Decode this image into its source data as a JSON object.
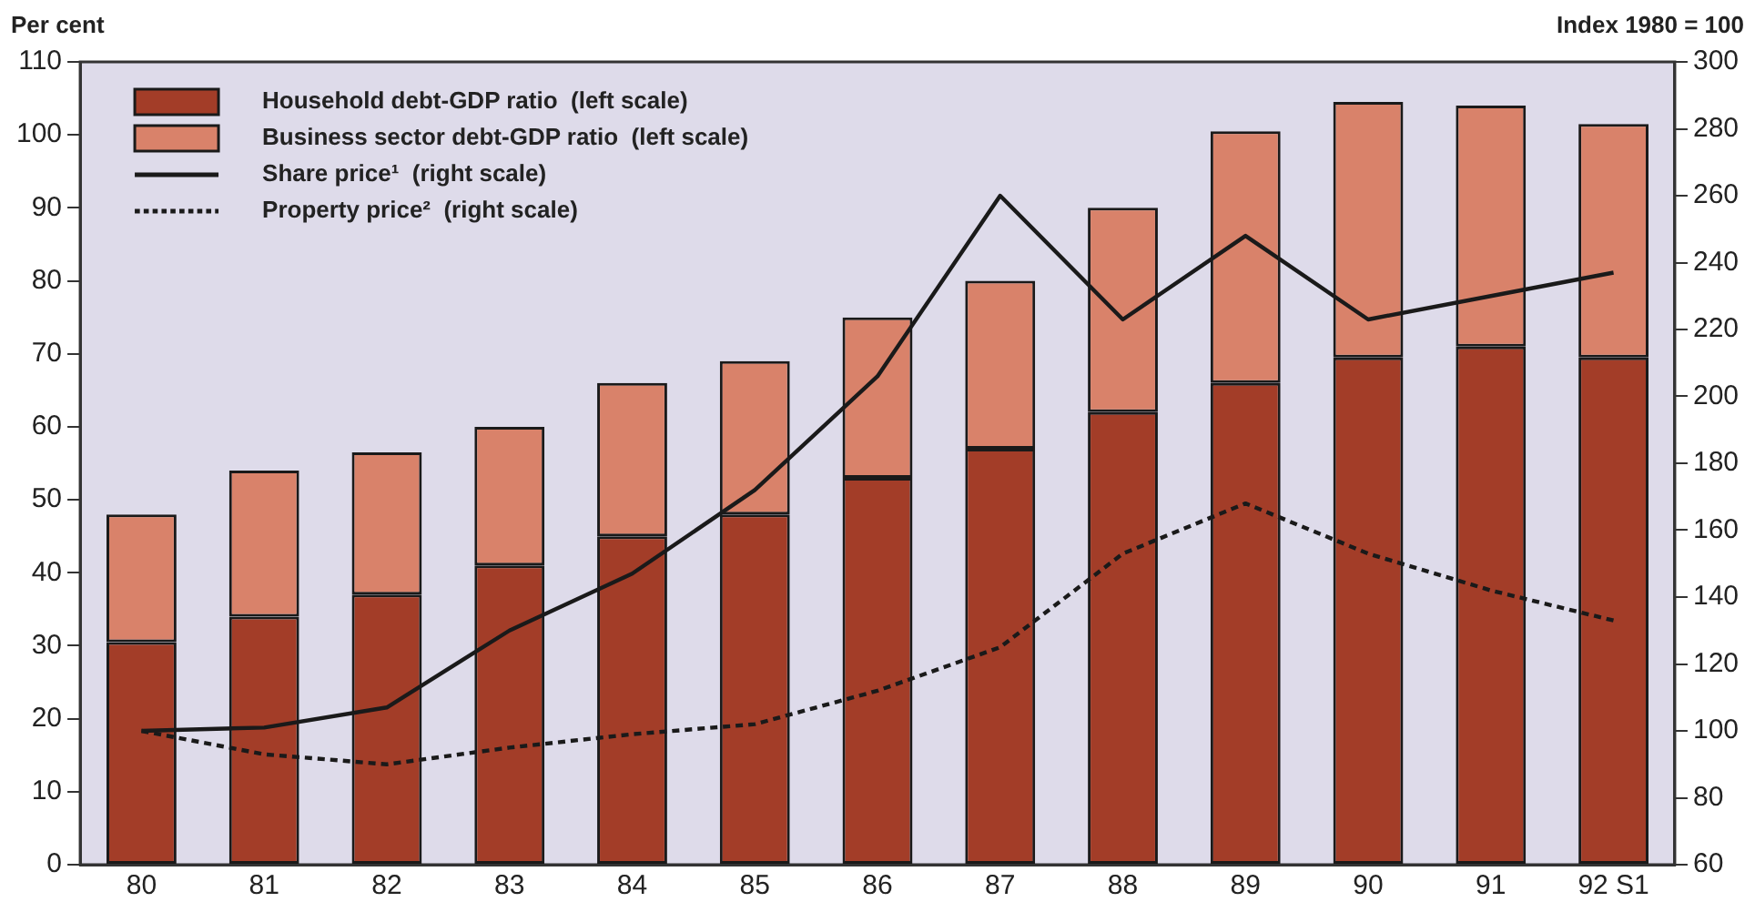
{
  "chart_data": {
    "type": "bar",
    "stacked": true,
    "ylabel": "Per cent",
    "y2label": "Index 1980 = 100",
    "categories": [
      "80",
      "81",
      "82",
      "83",
      "84",
      "85",
      "86",
      "87",
      "88",
      "89",
      "90",
      "91",
      "92 S1"
    ],
    "series": [
      {
        "name": "Household debt-GDP ratio  (left scale)",
        "color": "#a33d28",
        "values": [
          30.5,
          34,
          37,
          41,
          45,
          48,
          53,
          57,
          62,
          66,
          69.5,
          71,
          69.5
        ]
      },
      {
        "name": "Business sector debt-GDP ratio  (left scale)",
        "color": "#d9826a",
        "values": [
          17.5,
          20,
          19.5,
          19,
          21,
          21,
          22,
          23,
          28,
          34.5,
          35,
          33,
          32
        ]
      },
      {
        "name": "Share price¹  (right scale)",
        "type": "line",
        "axis": "y2",
        "color": "#1a1a1a",
        "line_style": "solid",
        "values": [
          100,
          101,
          107,
          130,
          147,
          172,
          206,
          260,
          223,
          248,
          223,
          230,
          237
        ]
      },
      {
        "name": "Property price²  (right scale)",
        "type": "line",
        "axis": "y2",
        "color": "#1a1a1a",
        "line_style": "dashed",
        "values": [
          100,
          93,
          90,
          95,
          99,
          102,
          112,
          125,
          153,
          168,
          153,
          142,
          133
        ]
      }
    ],
    "ylim": [
      0,
      110
    ],
    "yticks": [
      0,
      10,
      20,
      30,
      40,
      50,
      60,
      70,
      80,
      90,
      100,
      110
    ],
    "y2lim": [
      60,
      300
    ],
    "y2ticks": [
      60,
      80,
      100,
      120,
      140,
      160,
      180,
      200,
      220,
      240,
      260,
      280,
      300
    ],
    "grid": false,
    "legend": "top left",
    "marker": "none"
  }
}
